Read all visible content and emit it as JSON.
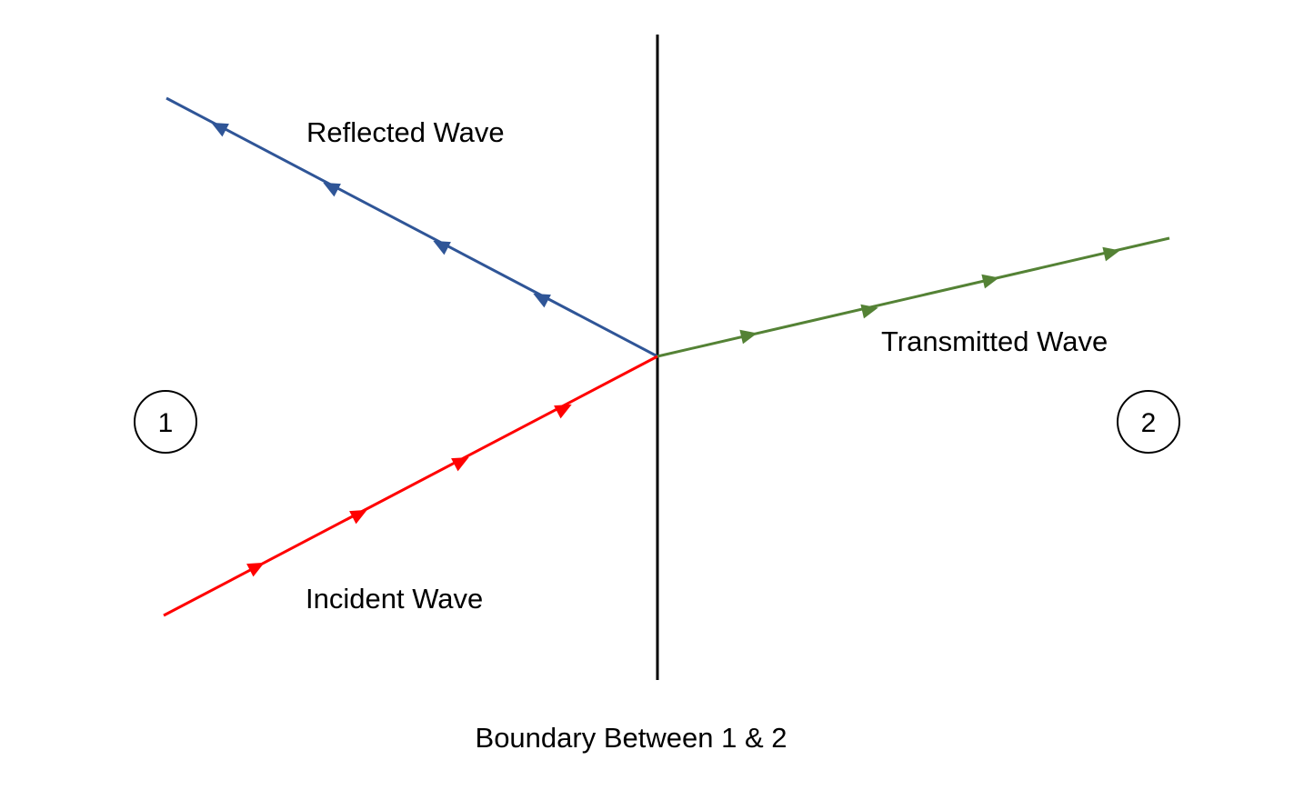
{
  "diagram": {
    "labels": {
      "reflected": "Reflected Wave",
      "incident": "Incident Wave",
      "transmitted": "Transmitted Wave",
      "boundary": "Boundary Between 1 & 2"
    },
    "regions": {
      "medium1": "1",
      "medium2": "2"
    },
    "colors": {
      "incident": "#ff0000",
      "reflected": "#2f5597",
      "transmitted": "#548235",
      "boundary": "#000000"
    }
  }
}
